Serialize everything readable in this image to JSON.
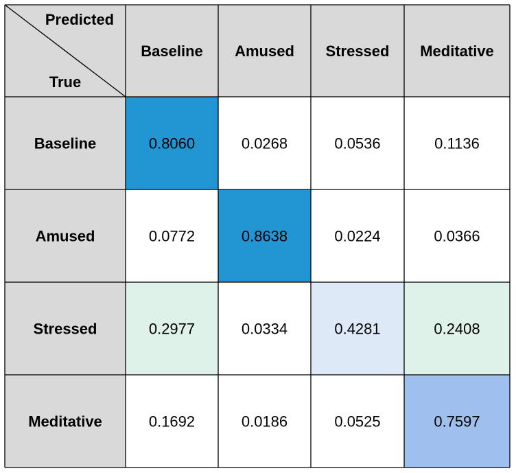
{
  "chart_data": {
    "type": "heatmap",
    "corner": {
      "top_label": "Predicted",
      "bottom_label": "True"
    },
    "columns": [
      "Baseline",
      "Amused",
      "Stressed",
      "Meditative"
    ],
    "rows": [
      "Baseline",
      "Amused",
      "Stressed",
      "Meditative"
    ],
    "values": [
      [
        "0.8060",
        "0.0268",
        "0.0536",
        "0.1136"
      ],
      [
        "0.0772",
        "0.8638",
        "0.0224",
        "0.0366"
      ],
      [
        "0.2977",
        "0.0334",
        "0.4281",
        "0.2408"
      ],
      [
        "0.1692",
        "0.0186",
        "0.0525",
        "0.7597"
      ]
    ],
    "cell_colors": [
      [
        "#2196d3",
        "#ffffff",
        "#ffffff",
        "#ffffff"
      ],
      [
        "#ffffff",
        "#2196d3",
        "#ffffff",
        "#ffffff"
      ],
      [
        "#dff2ea",
        "#ffffff",
        "#dee9f8",
        "#dff2ea"
      ],
      [
        "#ffffff",
        "#ffffff",
        "#ffffff",
        "#9fc0ee"
      ]
    ],
    "header_color": "#d9d9d9",
    "grid_color": "#000000"
  }
}
